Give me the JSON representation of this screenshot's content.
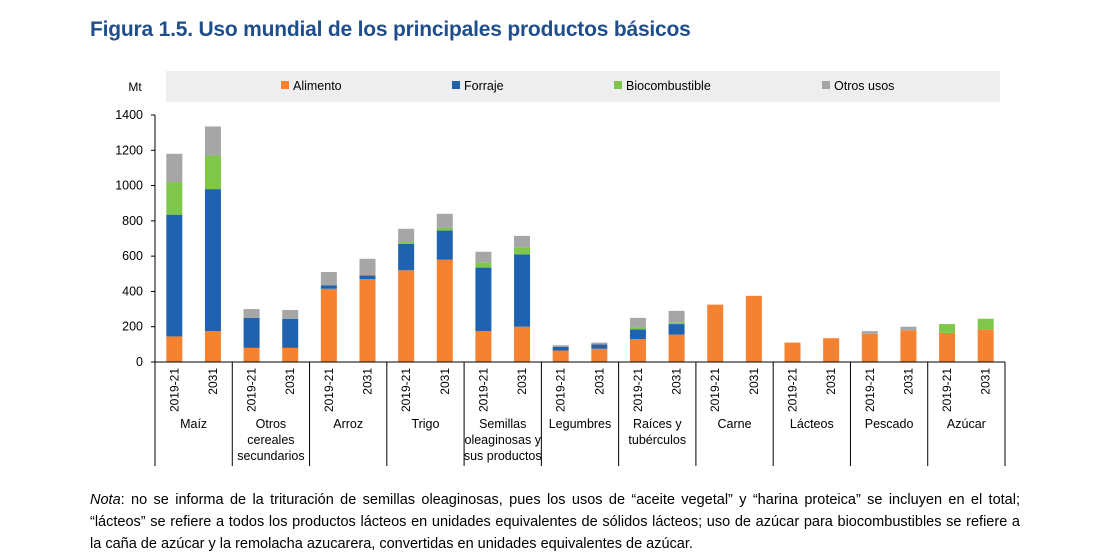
{
  "title": "Figura 1.5. Uso mundial de los principales productos básicos",
  "note": {
    "label": "Nota",
    "text": ": no se informa de la trituración de semillas oleaginosas, pues los usos de “aceite vegetal” y “harina proteica” se incluyen en el total; “lácteos” se refiere a todos los productos lácteos en unidades equivalentes de sólidos lácteos; uso de azúcar para biocombustibles se refiere a la caña de azúcar y la remolacha azucarera, convertidas en unidades equivalentes de azúcar."
  },
  "chart_data": {
    "type": "bar",
    "stacked": true,
    "ylabel": "Mt",
    "ylim": [
      0,
      1400
    ],
    "yticks": [
      0,
      200,
      400,
      600,
      800,
      1000,
      1200,
      1400
    ],
    "grid": false,
    "legend_position": "top",
    "periods": [
      "2019-21",
      "2031"
    ],
    "groups": [
      {
        "lines": [
          "Maíz"
        ]
      },
      {
        "lines": [
          "Otros",
          "cereales",
          "secundarios"
        ]
      },
      {
        "lines": [
          "Arroz"
        ]
      },
      {
        "lines": [
          "Trigo"
        ]
      },
      {
        "lines": [
          "Semillas",
          "oleaginosas y",
          "sus productos"
        ]
      },
      {
        "lines": [
          "Legumbres"
        ]
      },
      {
        "lines": [
          "Raíces y",
          "tubérculos"
        ]
      },
      {
        "lines": [
          "Carne"
        ]
      },
      {
        "lines": [
          "Lácteos"
        ]
      },
      {
        "lines": [
          "Pescado"
        ]
      },
      {
        "lines": [
          "Azúcar"
        ]
      }
    ],
    "series": [
      {
        "name": "Alimento",
        "color": "#f58231",
        "values": [
          145,
          175,
          80,
          80,
          415,
          470,
          520,
          580,
          175,
          200,
          65,
          75,
          130,
          155,
          325,
          375,
          110,
          135,
          160,
          180,
          165,
          185
        ]
      },
      {
        "name": "Forraje",
        "color": "#1f63b0",
        "values": [
          690,
          805,
          170,
          165,
          20,
          20,
          150,
          165,
          360,
          410,
          20,
          25,
          55,
          60,
          0,
          0,
          0,
          0,
          0,
          0,
          0,
          0
        ]
      },
      {
        "name": "Biocombustible",
        "color": "#7ec74b",
        "values": [
          185,
          190,
          0,
          0,
          0,
          0,
          10,
          15,
          30,
          40,
          0,
          0,
          10,
          10,
          0,
          0,
          0,
          0,
          0,
          0,
          50,
          60
        ]
      },
      {
        "name": "Otros usos",
        "color": "#a6a6a6",
        "values": [
          160,
          165,
          50,
          50,
          75,
          95,
          75,
          80,
          60,
          65,
          10,
          10,
          55,
          65,
          0,
          0,
          0,
          0,
          15,
          20,
          0,
          0
        ]
      }
    ]
  }
}
